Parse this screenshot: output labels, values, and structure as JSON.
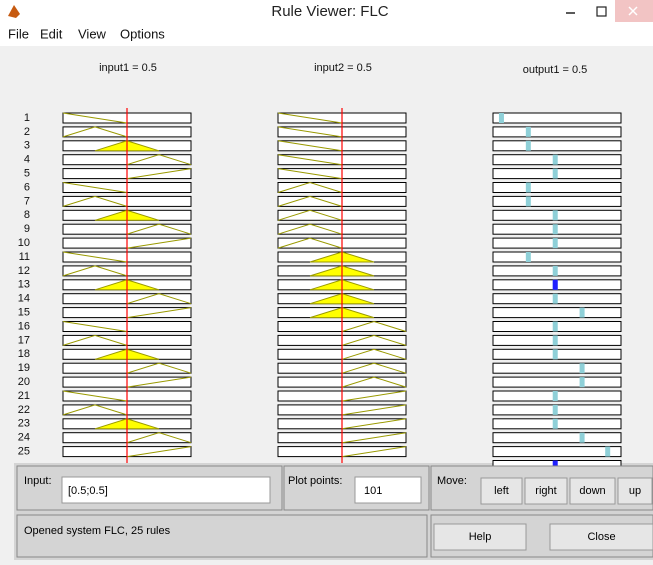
{
  "window": {
    "title": "Rule Viewer: FLC"
  },
  "menu": [
    "File",
    "Edit",
    "View",
    "Options"
  ],
  "columns": [
    "input1 = 0.5",
    "input2 = 0.5",
    "output1 = 0.5"
  ],
  "rules": [
    "1",
    "2",
    "3",
    "4",
    "5",
    "6",
    "7",
    "8",
    "9",
    "10",
    "11",
    "12",
    "13",
    "14",
    "15",
    "16",
    "17",
    "18",
    "19",
    "20",
    "21",
    "22",
    "23",
    "24",
    "25"
  ],
  "controls": {
    "input_label": "Input:",
    "input_value": "[0.5;0.5]",
    "plot_points_label": "Plot points:",
    "plot_points_value": "101",
    "move_label": "Move:",
    "buttons": [
      "left",
      "right",
      "down",
      "up"
    ]
  },
  "status": "Opened system FLC, 25 rules",
  "actions": [
    "Help",
    "Close"
  ]
}
